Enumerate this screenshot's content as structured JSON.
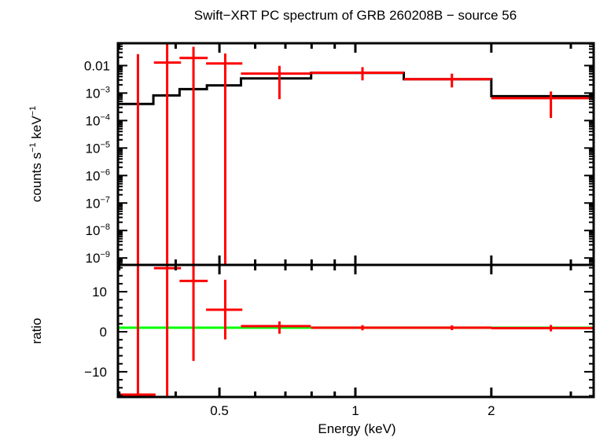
{
  "title": "Swift−XRT PC spectrum of GRB 260208B − source 56",
  "xlabel": "Energy (keV)",
  "colors": {
    "data": "#ff0000",
    "model": "#000000",
    "ratio_line": "#00ff00",
    "axes": "#000000"
  },
  "chart_data": [
    {
      "type": "line",
      "panel": "top",
      "ylabel_main": "counts s",
      "ylabel_exp1": "−1",
      "ylabel_mid": " keV",
      "ylabel_exp2": "−1",
      "xscale": "log",
      "yscale": "log",
      "xlim": [
        0.298,
        3.37
      ],
      "ylim": [
        5.6e-10,
        0.065
      ],
      "xticks_major": [
        0.5,
        1,
        2
      ],
      "xticks_minor": [
        0.3,
        0.4,
        0.6,
        0.7,
        0.8,
        0.9,
        3
      ],
      "yticklabels": [
        {
          "value": 0.01,
          "base": "0.01",
          "exp": ""
        },
        {
          "value": 0.001,
          "base": "10",
          "exp": "−3"
        },
        {
          "value": 0.0001,
          "base": "10",
          "exp": "−4"
        },
        {
          "value": 1e-05,
          "base": "10",
          "exp": "−5"
        },
        {
          "value": 1e-06,
          "base": "10",
          "exp": "−6"
        },
        {
          "value": 1e-07,
          "base": "10",
          "exp": "−7"
        },
        {
          "value": 1e-08,
          "base": "10",
          "exp": "−8"
        },
        {
          "value": 1e-09,
          "base": "10",
          "exp": "−9"
        }
      ],
      "model_bins": [
        {
          "e_lo": 0.298,
          "e_hi": 0.357,
          "value": 0.0004
        },
        {
          "e_lo": 0.357,
          "e_hi": 0.408,
          "value": 0.00082
        },
        {
          "e_lo": 0.408,
          "e_hi": 0.469,
          "value": 0.00139
        },
        {
          "e_lo": 0.469,
          "e_hi": 0.558,
          "value": 0.0019
        },
        {
          "e_lo": 0.558,
          "e_hi": 0.798,
          "value": 0.0034
        },
        {
          "e_lo": 0.798,
          "e_hi": 1.28,
          "value": 0.0054
        },
        {
          "e_lo": 1.28,
          "e_hi": 2.0,
          "value": 0.0032
        },
        {
          "e_lo": 2.0,
          "e_hi": 3.37,
          "value": 0.00077
        }
      ],
      "data_points": [
        {
          "e": 0.33,
          "e_lo": 0.298,
          "e_hi": 0.361,
          "value": null,
          "err_lo": null,
          "err_hi": 0.026
        },
        {
          "e": 0.383,
          "e_lo": 0.358,
          "e_hi": 0.411,
          "value": 0.0128,
          "err_lo": null,
          "err_hi": null
        },
        {
          "e": 0.438,
          "e_lo": 0.408,
          "e_hi": 0.471,
          "value": 0.0189,
          "err_lo": null,
          "err_hi": 0.0485
        },
        {
          "e": 0.515,
          "e_lo": 0.467,
          "e_hi": 0.562,
          "value": 0.0119,
          "err_lo": null,
          "err_hi": 0.0273
        },
        {
          "e": 0.679,
          "e_lo": 0.558,
          "e_hi": 0.797,
          "value": 0.0051,
          "err_lo": 0.0006,
          "err_hi": 0.0098
        },
        {
          "e": 1.037,
          "e_lo": 0.798,
          "e_hi": 1.28,
          "value": 0.0055,
          "err_lo": 0.0029,
          "err_hi": 0.0088
        },
        {
          "e": 1.636,
          "e_lo": 1.28,
          "e_hi": 2.0,
          "value": 0.0032,
          "err_lo": 0.0016,
          "err_hi": 0.0051
        },
        {
          "e": 2.71,
          "e_lo": 2.0,
          "e_hi": 3.37,
          "value": 0.00065,
          "err_lo": 0.000124,
          "err_hi": 0.00114
        }
      ]
    },
    {
      "type": "line",
      "panel": "bottom",
      "ylabel": "ratio",
      "xscale": "log",
      "yscale": "linear",
      "xlim": [
        0.298,
        3.37
      ],
      "ylim": [
        -16.3,
        16.7
      ],
      "yticklabels": [
        {
          "value": 10,
          "label": "10"
        },
        {
          "value": 0,
          "label": "0"
        },
        {
          "value": -10,
          "label": "−10"
        }
      ],
      "xticklabels": [
        {
          "value": 0.5,
          "label": "0.5"
        },
        {
          "value": 1,
          "label": "1"
        },
        {
          "value": 2,
          "label": "2"
        }
      ],
      "reference_line": 1,
      "data_points": [
        {
          "e": 0.33,
          "e_lo": 0.298,
          "e_hi": 0.361,
          "value": -15.7,
          "err_lo": null,
          "err_hi": null
        },
        {
          "e": 0.383,
          "e_lo": 0.358,
          "e_hi": 0.411,
          "value": 15.9,
          "err_lo": null,
          "err_hi": null
        },
        {
          "e": 0.438,
          "e_lo": 0.408,
          "e_hi": 0.471,
          "value": 12.7,
          "err_lo": -7.3,
          "err_hi": null
        },
        {
          "e": 0.515,
          "e_lo": 0.467,
          "e_hi": 0.562,
          "value": 5.5,
          "err_lo": -1.9,
          "err_hi": 13.0
        },
        {
          "e": 0.679,
          "e_lo": 0.558,
          "e_hi": 0.797,
          "value": 1.4,
          "err_lo": -0.5,
          "err_hi": 2.6
        },
        {
          "e": 1.037,
          "e_lo": 0.798,
          "e_hi": 1.28,
          "value": 1.0,
          "err_lo": 0.35,
          "err_hi": 1.65
        },
        {
          "e": 1.636,
          "e_lo": 1.28,
          "e_hi": 2.0,
          "value": 1.0,
          "err_lo": 0.4,
          "err_hi": 1.6
        },
        {
          "e": 2.71,
          "e_lo": 2.0,
          "e_hi": 3.37,
          "value": 0.9,
          "err_lo": 0.1,
          "err_hi": 1.7
        }
      ]
    }
  ]
}
